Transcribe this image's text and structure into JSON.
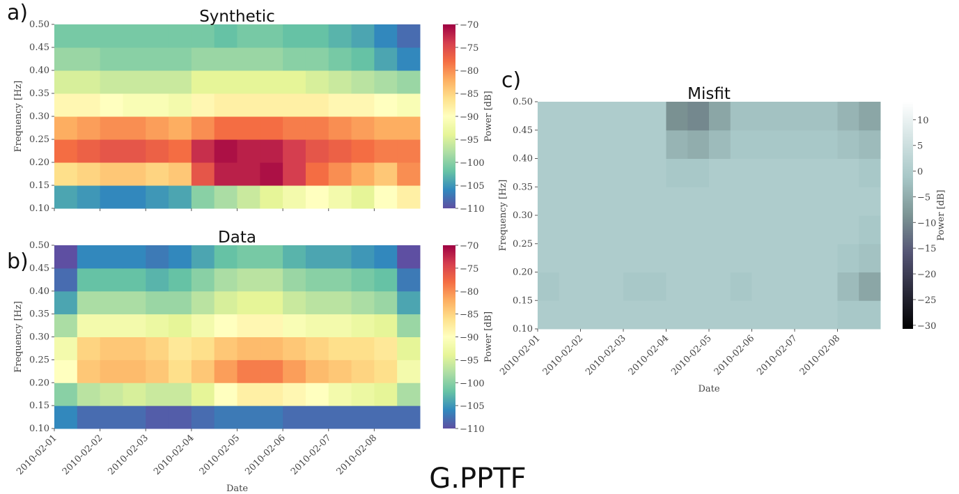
{
  "station": "G.PPTF",
  "chart_data": [
    {
      "type": "heatmap",
      "panel_label": "a)",
      "title": "Synthetic",
      "ylabel": "Frequency [Hz]",
      "colorbar_label": "Power [dB]",
      "ylim": [
        0.1,
        0.5
      ],
      "yticks": [
        {
          "value": 0.1,
          "label": "0.10"
        },
        {
          "value": 0.15,
          "label": "0.15"
        },
        {
          "value": 0.2,
          "label": "0.20"
        },
        {
          "value": 0.25,
          "label": "0.25"
        },
        {
          "value": 0.3,
          "label": "0.30"
        },
        {
          "value": 0.35,
          "label": "0.35"
        },
        {
          "value": 0.4,
          "label": "0.40"
        },
        {
          "value": 0.45,
          "label": "0.45"
        },
        {
          "value": 0.5,
          "label": "0.50"
        }
      ],
      "clim": [
        -110,
        -70
      ],
      "cticks": [
        {
          "value": -110,
          "label": "−110"
        },
        {
          "value": -105,
          "label": "−105"
        },
        {
          "value": -100,
          "label": "−100"
        },
        {
          "value": -95,
          "label": "−95"
        },
        {
          "value": -90,
          "label": "−90"
        },
        {
          "value": -85,
          "label": "−85"
        },
        {
          "value": -80,
          "label": "−80"
        },
        {
          "value": -75,
          "label": "−75"
        },
        {
          "value": -70,
          "label": "−70"
        }
      ],
      "colormap": [
        "#5e4fa2",
        "#3288bd",
        "#66c2a5",
        "#abdda4",
        "#e6f598",
        "#ffffbf",
        "#fee08b",
        "#fdae61",
        "#f46d43",
        "#d53e4f",
        "#9e0142"
      ],
      "values": [
        [
          -104,
          -105,
          -106,
          -106,
          -105,
          -104,
          -100,
          -98,
          -96,
          -94,
          -92,
          -90,
          -92,
          -94,
          -90,
          -88
        ],
        [
          -86,
          -85,
          -84,
          -84,
          -85,
          -84,
          -76,
          -72,
          -72,
          -71,
          -74,
          -78,
          -80,
          -82,
          -84,
          -80
        ],
        [
          -78,
          -77,
          -76,
          -76,
          -77,
          -78,
          -73,
          -71,
          -72,
          -72,
          -74,
          -76,
          -77,
          -78,
          -79,
          -79
        ],
        [
          -82,
          -81,
          -80,
          -80,
          -81,
          -82,
          -80,
          -78,
          -78,
          -78,
          -79,
          -79,
          -80,
          -81,
          -82,
          -82
        ],
        [
          -89,
          -89,
          -90,
          -91,
          -91,
          -92,
          -89,
          -88,
          -88,
          -88,
          -88,
          -88,
          -89,
          -89,
          -90,
          -91
        ],
        [
          -95,
          -95,
          -96,
          -96,
          -96,
          -96,
          -94,
          -94,
          -94,
          -94,
          -94,
          -95,
          -96,
          -97,
          -98,
          -99
        ],
        [
          -99,
          -99,
          -100,
          -100,
          -100,
          -100,
          -99,
          -99,
          -99,
          -99,
          -100,
          -100,
          -101,
          -102,
          -104,
          -106
        ],
        [
          -101,
          -101,
          -101,
          -101,
          -101,
          -101,
          -101,
          -102,
          -101,
          -101,
          -102,
          -102,
          -103,
          -104,
          -106,
          -108
        ]
      ]
    },
    {
      "type": "heatmap",
      "panel_label": "b)",
      "title": "Data",
      "xlabel": "Date",
      "ylabel": "Frequency [Hz]",
      "colorbar_label": "Power [dB]",
      "categories": [
        "2010-02-01",
        null,
        "2010-02-02",
        null,
        "2010-02-03",
        null,
        "2010-02-04",
        null,
        "2010-02-05",
        null,
        "2010-02-06",
        null,
        "2010-02-07",
        null,
        "2010-02-08",
        null
      ],
      "ylim": [
        0.1,
        0.5
      ],
      "yticks": [
        {
          "value": 0.1,
          "label": "0.10"
        },
        {
          "value": 0.15,
          "label": "0.15"
        },
        {
          "value": 0.2,
          "label": "0.20"
        },
        {
          "value": 0.25,
          "label": "0.25"
        },
        {
          "value": 0.3,
          "label": "0.30"
        },
        {
          "value": 0.35,
          "label": "0.35"
        },
        {
          "value": 0.4,
          "label": "0.40"
        },
        {
          "value": 0.45,
          "label": "0.45"
        },
        {
          "value": 0.5,
          "label": "0.50"
        }
      ],
      "clim": [
        -110,
        -70
      ],
      "cticks": [
        {
          "value": -110,
          "label": "−110"
        },
        {
          "value": -105,
          "label": "−105"
        },
        {
          "value": -100,
          "label": "−100"
        },
        {
          "value": -95,
          "label": "−95"
        },
        {
          "value": -90,
          "label": "−90"
        },
        {
          "value": -85,
          "label": "−85"
        },
        {
          "value": -80,
          "label": "−80"
        },
        {
          "value": -75,
          "label": "−75"
        },
        {
          "value": -70,
          "label": "−70"
        }
      ],
      "colormap": [
        "#5e4fa2",
        "#3288bd",
        "#66c2a5",
        "#abdda4",
        "#e6f598",
        "#ffffbf",
        "#fee08b",
        "#fdae61",
        "#f46d43",
        "#d53e4f",
        "#9e0142"
      ],
      "values": [
        [
          -106,
          -108,
          -108,
          -108,
          -109,
          -109,
          -108,
          -107,
          -107,
          -107,
          -108,
          -108,
          -108,
          -108,
          -108,
          -108
        ],
        [
          -100,
          -97,
          -96,
          -95,
          -96,
          -96,
          -94,
          -90,
          -88,
          -88,
          -89,
          -90,
          -92,
          -93,
          -94,
          -98
        ],
        [
          -90,
          -84,
          -83,
          -83,
          -84,
          -86,
          -84,
          -81,
          -79,
          -79,
          -81,
          -83,
          -84,
          -85,
          -86,
          -92
        ],
        [
          -92,
          -85,
          -84,
          -84,
          -85,
          -87,
          -86,
          -84,
          -83,
          -83,
          -84,
          -85,
          -86,
          -86,
          -87,
          -94
        ],
        [
          -98,
          -92,
          -92,
          -92,
          -93,
          -94,
          -92,
          -90,
          -89,
          -89,
          -91,
          -92,
          -92,
          -93,
          -94,
          -99
        ],
        [
          -104,
          -98,
          -98,
          -98,
          -99,
          -99,
          -97,
          -95,
          -94,
          -94,
          -96,
          -97,
          -97,
          -98,
          -99,
          -104
        ],
        [
          -108,
          -102,
          -102,
          -102,
          -103,
          -102,
          -100,
          -98,
          -97,
          -97,
          -99,
          -100,
          -100,
          -101,
          -102,
          -107
        ],
        [
          -110,
          -106,
          -106,
          -106,
          -107,
          -106,
          -104,
          -102,
          -101,
          -101,
          -103,
          -104,
          -104,
          -105,
          -106,
          -110
        ]
      ]
    },
    {
      "type": "heatmap",
      "panel_label": "c)",
      "title": "Misfit",
      "xlabel": "Date",
      "ylabel": "Frequency [Hz]",
      "colorbar_label": "Power [dB]",
      "categories": [
        "2010-02-01",
        null,
        "2010-02-02",
        null,
        "2010-02-03",
        null,
        "2010-02-04",
        null,
        "2010-02-05",
        null,
        "2010-02-06",
        null,
        "2010-02-07",
        null,
        "2010-02-08",
        null
      ],
      "ylim": [
        0.1,
        0.5
      ],
      "yticks": [
        {
          "value": 0.1,
          "label": "0.10"
        },
        {
          "value": 0.15,
          "label": "0.15"
        },
        {
          "value": 0.2,
          "label": "0.20"
        },
        {
          "value": 0.25,
          "label": "0.25"
        },
        {
          "value": 0.3,
          "label": "0.30"
        },
        {
          "value": 0.35,
          "label": "0.35"
        },
        {
          "value": 0.4,
          "label": "0.40"
        },
        {
          "value": 0.45,
          "label": "0.45"
        },
        {
          "value": 0.5,
          "label": "0.50"
        }
      ],
      "clim": [
        -30.7,
        13.5
      ],
      "cticks": [
        {
          "value": -30,
          "label": "−30"
        },
        {
          "value": -25,
          "label": "−25"
        },
        {
          "value": -20,
          "label": "−20"
        },
        {
          "value": -15,
          "label": "−15"
        },
        {
          "value": -10,
          "label": "−10"
        },
        {
          "value": -5,
          "label": "−5"
        },
        0,
        5,
        10
      ],
      "colormap": [
        "#000000",
        "#2a2a3a",
        "#545474",
        "#7c9494",
        "#a7c7c7",
        "#d3e3e3",
        "#ffffff"
      ],
      "values": [
        [
          0,
          0,
          0,
          0,
          0,
          0,
          0,
          0,
          0,
          0,
          0,
          0,
          0,
          0,
          -1,
          -1
        ],
        [
          -1,
          0,
          0,
          0,
          -1,
          -1,
          0,
          0,
          0,
          -1,
          0,
          0,
          0,
          0,
          -3,
          -6
        ],
        [
          0,
          0,
          0,
          0,
          0,
          0,
          0,
          0,
          0,
          0,
          0,
          0,
          0,
          0,
          -1,
          -2
        ],
        [
          0,
          0,
          0,
          0,
          0,
          0,
          0,
          0,
          0,
          0,
          0,
          0,
          0,
          0,
          0,
          -1
        ],
        [
          0,
          0,
          0,
          0,
          0,
          0,
          0,
          0,
          0,
          0,
          0,
          0,
          0,
          0,
          0,
          0
        ],
        [
          0,
          0,
          0,
          0,
          0,
          0,
          -1,
          -1,
          0,
          0,
          0,
          0,
          0,
          0,
          0,
          -1
        ],
        [
          0,
          0,
          0,
          0,
          0,
          0,
          -4,
          -5,
          -3,
          -1,
          -1,
          -1,
          -1,
          -1,
          -2,
          -3
        ],
        [
          0,
          0,
          0,
          0,
          0,
          0,
          -9,
          -10,
          -6,
          -2,
          -2,
          -2,
          -2,
          -2,
          -4,
          -6
        ]
      ]
    }
  ]
}
